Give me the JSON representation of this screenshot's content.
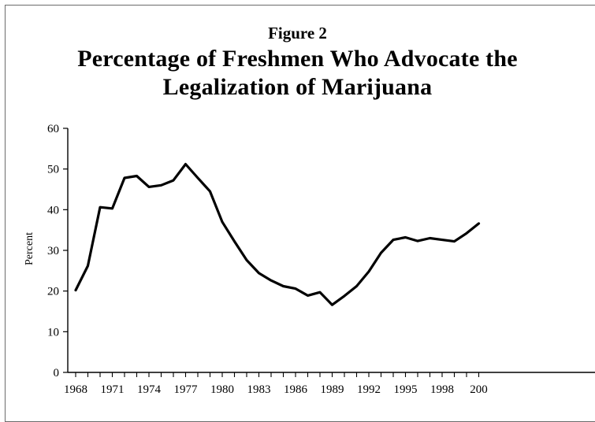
{
  "figure_label": "Figure 2",
  "title_lines": [
    "Percentage of Freshmen Who Advocate the",
    "Legalization of Marijuana"
  ],
  "chart_data": {
    "type": "line",
    "title": "Percentage of Freshmen Who Advocate the Legalization of Marijuana",
    "xlabel": "",
    "ylabel": "Percent",
    "xlim": [
      1968,
      2001
    ],
    "ylim": [
      0,
      60
    ],
    "x_ticks": [
      "1968",
      "1971",
      "1974",
      "1977",
      "1980",
      "1983",
      "1986",
      "1989",
      "1992",
      "1995",
      "1998",
      "200"
    ],
    "y_ticks": [
      "0",
      "10",
      "20",
      "30",
      "40",
      "50",
      "60"
    ],
    "grid": false,
    "legend": "none",
    "line_color": "#000000",
    "series": [
      {
        "x": [
          1968,
          1969,
          1970,
          1971,
          1972,
          1973,
          1974,
          1975,
          1976,
          1977,
          1978,
          1979,
          1980,
          1981,
          1982,
          1983,
          1984,
          1985,
          1986,
          1987,
          1988,
          1989,
          1990,
          1991,
          1992,
          1993,
          1994,
          1995,
          1996,
          1997,
          1998,
          1999,
          2000,
          2001
        ],
        "values": [
          20.2,
          26.2,
          40.6,
          40.3,
          47.8,
          48.3,
          45.6,
          46.0,
          47.2,
          51.2,
          47.8,
          44.5,
          37.0,
          32.2,
          27.6,
          24.4,
          22.6,
          21.2,
          20.6,
          18.9,
          19.7,
          16.6,
          18.8,
          21.2,
          24.8,
          29.4,
          32.6,
          33.2,
          32.3,
          33.0,
          32.6,
          32.2,
          34.2,
          36.6
        ]
      }
    ]
  }
}
